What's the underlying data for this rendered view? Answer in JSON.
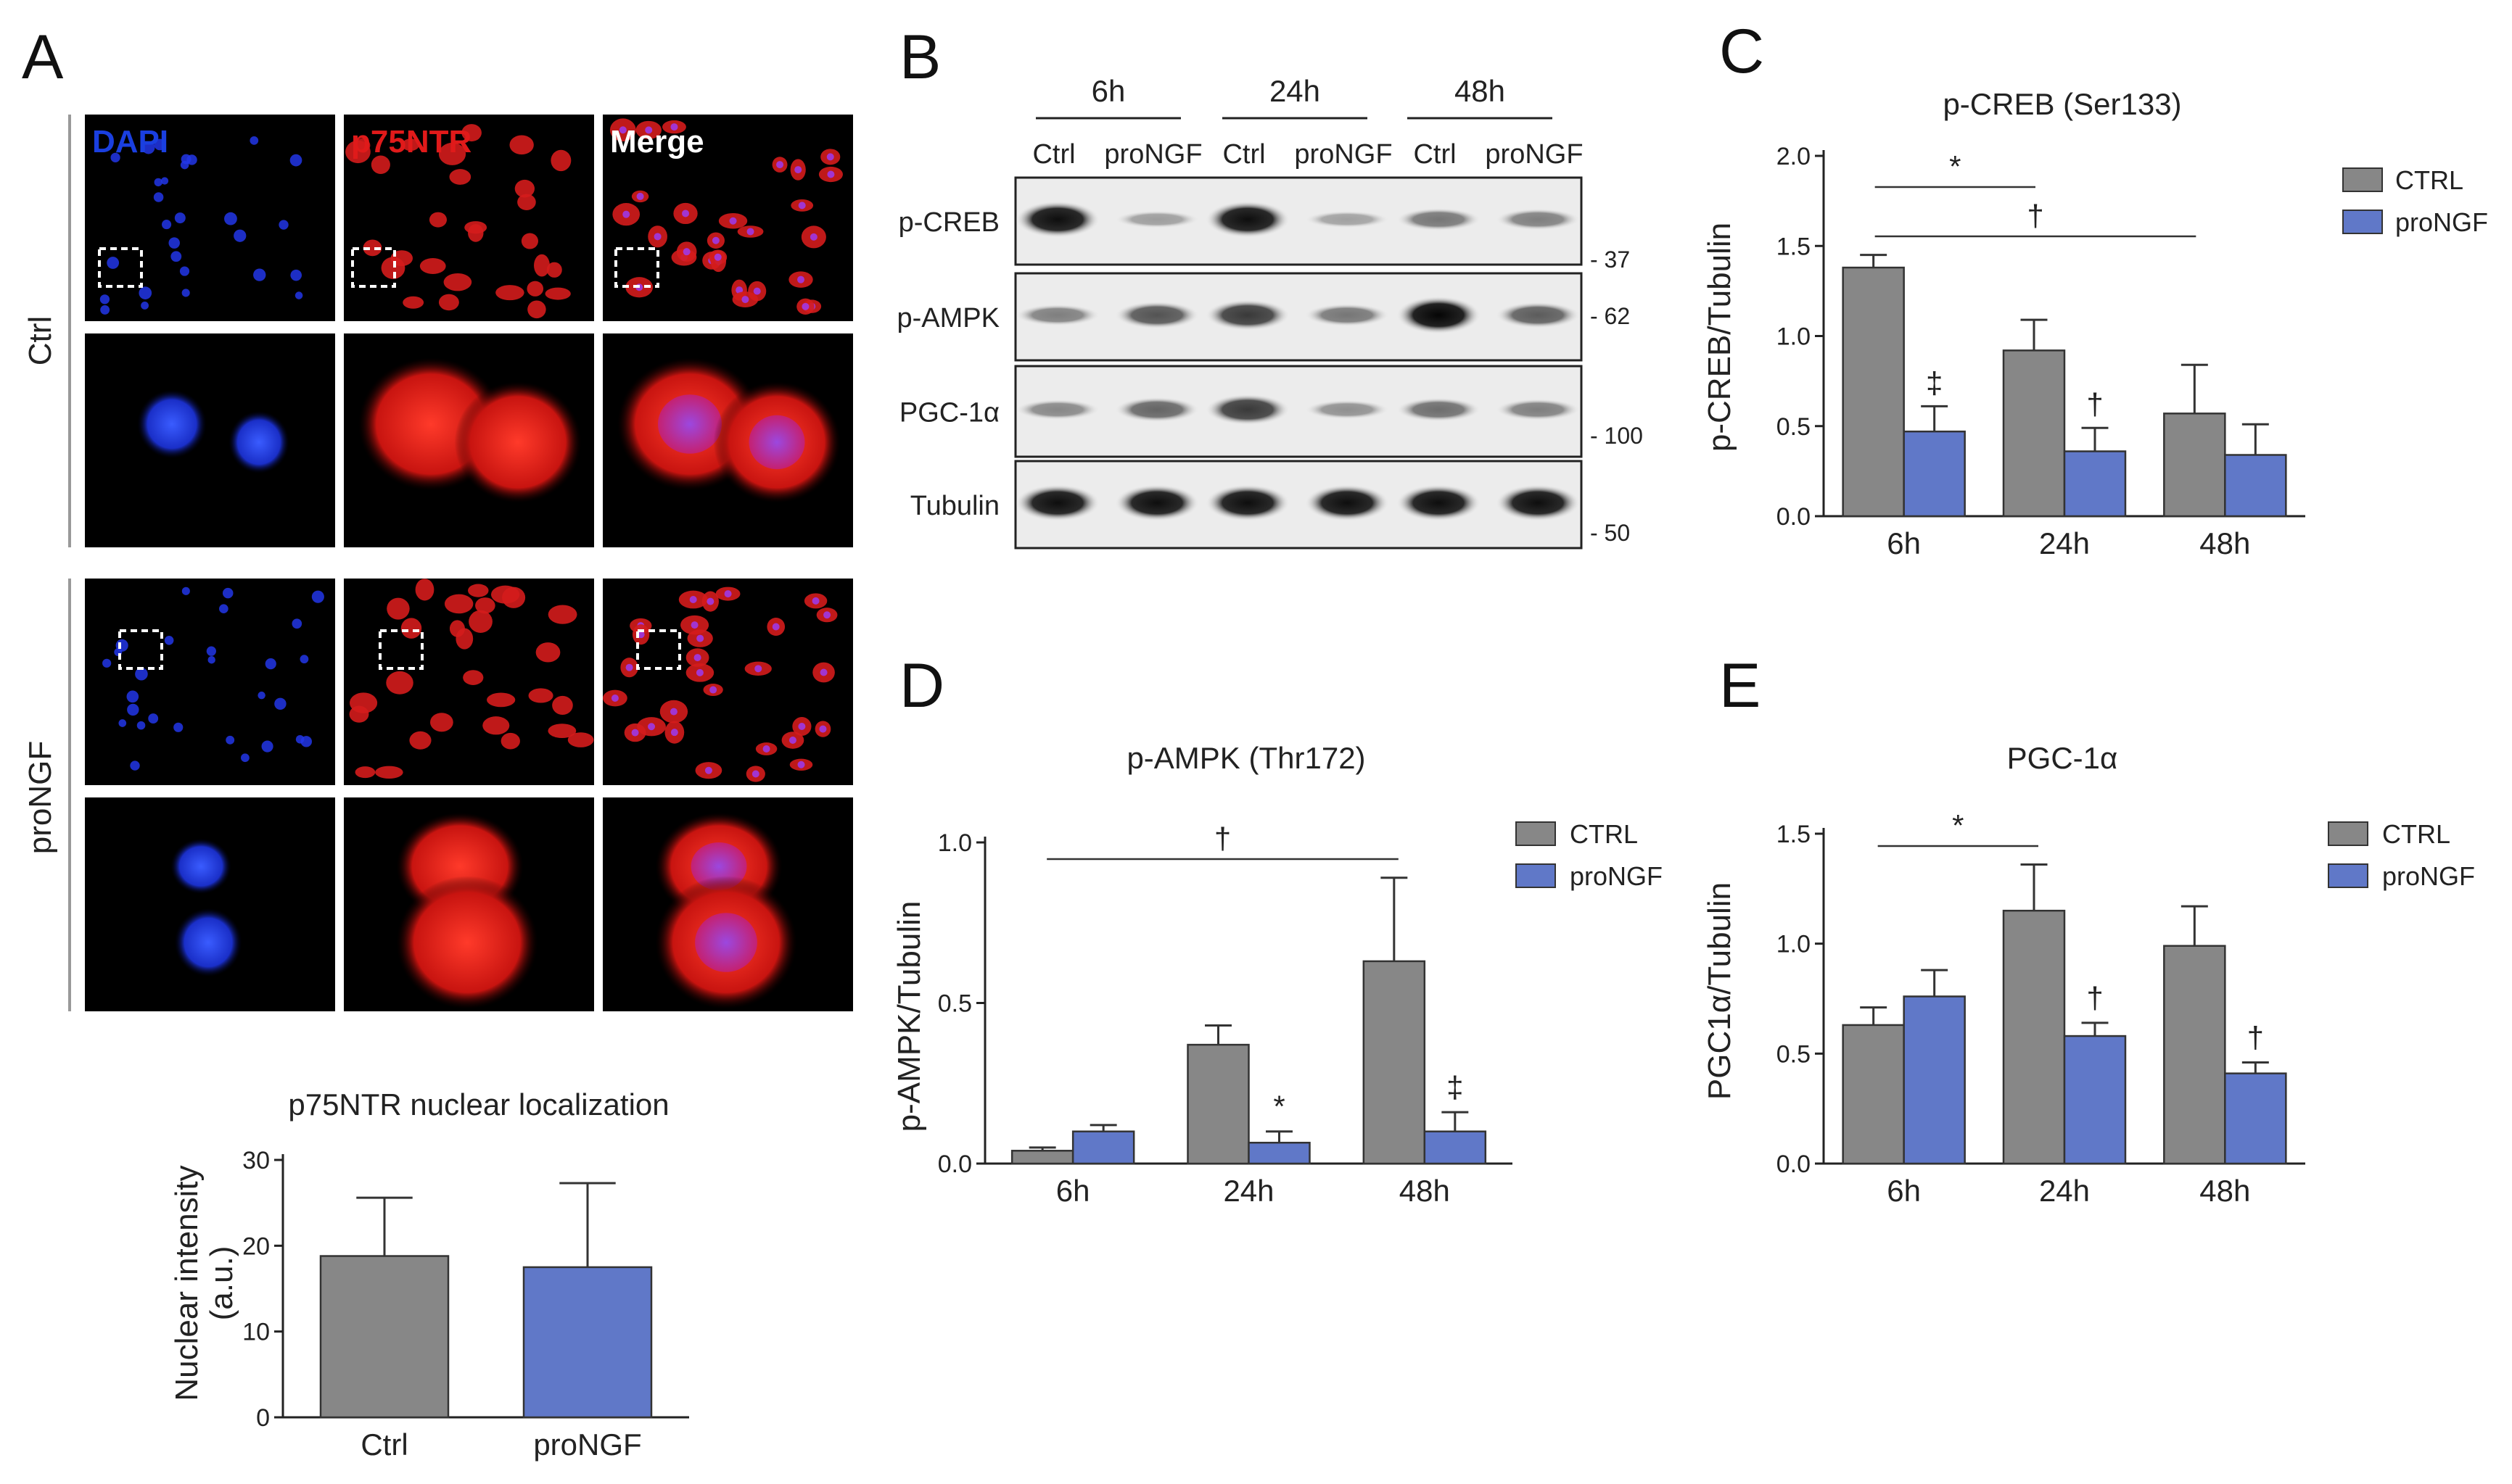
{
  "colors": {
    "ctrl": "#878787",
    "prongf": "#6078c8",
    "dapi": "#1a3fe0",
    "p75ntr": "#e01a1a",
    "merge": "#ffffff",
    "axis": "#222222"
  },
  "panelA": {
    "letter": "A",
    "channels": [
      "DAPI",
      "p75NTR",
      "Merge"
    ],
    "rows": [
      "Ctrl",
      "proNGF"
    ],
    "chart_data": {
      "type": "bar",
      "title": "p75NTR nuclear localization",
      "ylabel_line1": "Nuclear intensity",
      "ylabel_line2": "(a.u.)",
      "categories": [
        "Ctrl",
        "proNGF"
      ],
      "values": [
        18.8,
        17.5
      ],
      "errors": [
        6.8,
        9.8
      ],
      "ylim": [
        0,
        30
      ],
      "yticks": [
        "0",
        "10",
        "20",
        "30"
      ]
    }
  },
  "panelB": {
    "letter": "B",
    "timepoints": [
      "6h",
      "24h",
      "48h"
    ],
    "lanes": [
      "Ctrl",
      "proNGF",
      "Ctrl",
      "proNGF",
      "Ctrl",
      "proNGF"
    ],
    "blots": [
      {
        "label": "p-CREB",
        "mw": "- 37"
      },
      {
        "label": "p-AMPK",
        "mw": "- 62"
      },
      {
        "label": "PGC-1α",
        "mw": "- 100"
      },
      {
        "label": "Tubulin",
        "mw": "- 50"
      }
    ]
  },
  "legend": {
    "ctrl": "CTRL",
    "prongf": "proNGF"
  },
  "panelC": {
    "letter": "C",
    "chart_data": {
      "type": "bar",
      "title": "p-CREB (Ser133)",
      "ylabel": "p-CREB/Tubulin",
      "categories": [
        "6h",
        "24h",
        "48h"
      ],
      "series": [
        {
          "name": "CTRL",
          "values": [
            1.38,
            0.92,
            0.57
          ],
          "errors": [
            0.07,
            0.17,
            0.27
          ]
        },
        {
          "name": "proNGF",
          "values": [
            0.47,
            0.36,
            0.34
          ],
          "errors": [
            0.14,
            0.13,
            0.17
          ]
        }
      ],
      "ylim": [
        0,
        2.0
      ],
      "yticks": [
        "0.0",
        "0.5",
        "1.0",
        "1.5",
        "2.0"
      ],
      "annotations": {
        "star": "*",
        "dagger": "†",
        "ddagger": "‡"
      }
    }
  },
  "panelD": {
    "letter": "D",
    "chart_data": {
      "type": "bar",
      "title": "p-AMPK (Thr172)",
      "ylabel": "p-AMPK/Tubulin",
      "categories": [
        "6h",
        "24h",
        "48h"
      ],
      "series": [
        {
          "name": "CTRL",
          "values": [
            0.04,
            0.37,
            0.63
          ],
          "errors": [
            0.01,
            0.06,
            0.26
          ]
        },
        {
          "name": "proNGF",
          "values": [
            0.1,
            0.065,
            0.1
          ],
          "errors": [
            0.02,
            0.035,
            0.06
          ]
        }
      ],
      "ylim": [
        0,
        1.0
      ],
      "yticks": [
        "0.0",
        "0.5",
        "1.0"
      ],
      "annotations": {
        "star": "*",
        "dagger": "†",
        "ddagger": "‡"
      }
    }
  },
  "panelE": {
    "letter": "E",
    "chart_data": {
      "type": "bar",
      "title": "PGC-1α",
      "ylabel": "PGC1α/Tubulin",
      "categories": [
        "6h",
        "24h",
        "48h"
      ],
      "series": [
        {
          "name": "CTRL",
          "values": [
            0.63,
            1.15,
            0.99
          ],
          "errors": [
            0.08,
            0.21,
            0.18
          ]
        },
        {
          "name": "proNGF",
          "values": [
            0.76,
            0.58,
            0.41
          ],
          "errors": [
            0.12,
            0.06,
            0.05
          ]
        }
      ],
      "ylim": [
        0,
        1.5
      ],
      "yticks": [
        "0.0",
        "0.5",
        "1.0",
        "1.5"
      ],
      "annotations": {
        "star": "*",
        "dagger": "†"
      }
    }
  }
}
